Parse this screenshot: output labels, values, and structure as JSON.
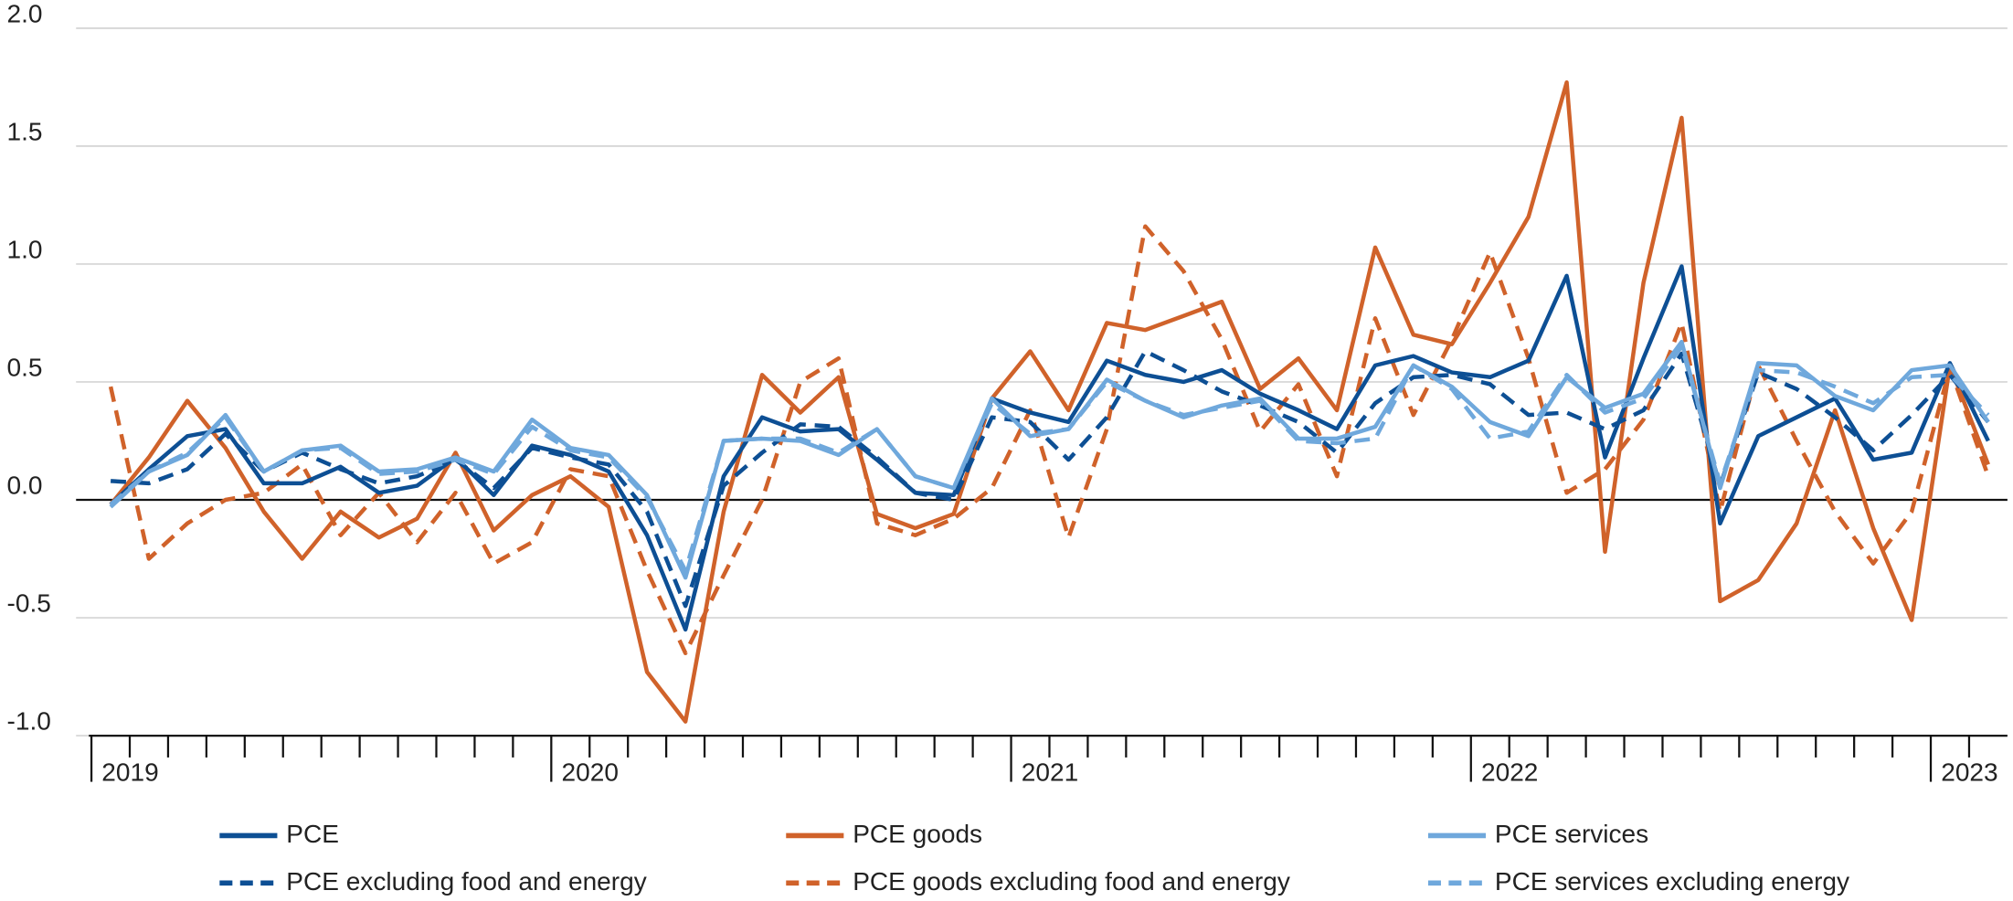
{
  "chart_data": {
    "type": "line",
    "categories": [
      "2019",
      null,
      null,
      null,
      null,
      null,
      null,
      null,
      null,
      null,
      null,
      null,
      "2020",
      null,
      null,
      null,
      null,
      null,
      null,
      null,
      null,
      null,
      null,
      null,
      "2021",
      null,
      null,
      null,
      null,
      null,
      null,
      null,
      null,
      null,
      null,
      null,
      "2022",
      null,
      null,
      null,
      null,
      null,
      null,
      null,
      null,
      null,
      null,
      null,
      "2023",
      null
    ],
    "ylim": [
      -1.0,
      2.0
    ],
    "yticks": [
      {
        "value": 2.0,
        "label": "2.0"
      },
      {
        "value": 1.5,
        "label": "1.5"
      },
      {
        "value": 1.0,
        "label": "1.0"
      },
      {
        "value": 0.5,
        "label": "0.5"
      },
      {
        "value": 0,
        "label": "0.0"
      },
      {
        "value": -0.5,
        "label": "-0.5"
      },
      {
        "value": -1.0,
        "label": "-1.0"
      }
    ],
    "grid": true,
    "legend": "bottom",
    "series": [
      {
        "name": "PCE",
        "color": "#0d4f94",
        "dashed": false,
        "values": [
          -0.02,
          0.13,
          0.27,
          0.3,
          0.07,
          0.07,
          0.14,
          0.03,
          0.06,
          0.18,
          0.02,
          0.23,
          0.19,
          0.12,
          -0.15,
          -0.55,
          0.1,
          0.35,
          0.29,
          0.3,
          0.17,
          0.03,
          0.02,
          0.43,
          0.37,
          0.33,
          0.59,
          0.53,
          0.5,
          0.55,
          0.45,
          0.38,
          0.3,
          0.57,
          0.61,
          0.54,
          0.52,
          0.59,
          0.95,
          0.18,
          0.6,
          0.99,
          -0.1,
          0.27,
          0.35,
          0.43,
          0.17,
          0.2,
          0.58,
          0.25
        ]
      },
      {
        "name": "PCE goods",
        "color": "#d0622a",
        "dashed": false,
        "values": [
          -0.02,
          0.18,
          0.42,
          0.22,
          -0.05,
          -0.25,
          -0.05,
          -0.16,
          -0.08,
          0.2,
          -0.13,
          0.02,
          0.1,
          -0.03,
          -0.73,
          -0.94,
          -0.05,
          0.53,
          0.37,
          0.52,
          -0.06,
          -0.12,
          -0.06,
          0.43,
          0.63,
          0.38,
          0.75,
          0.72,
          0.78,
          0.84,
          0.47,
          0.6,
          0.38,
          1.07,
          0.7,
          0.66,
          0.92,
          1.2,
          1.77,
          -0.22,
          0.92,
          1.62,
          -0.43,
          -0.34,
          -0.1,
          0.38,
          -0.12,
          -0.51,
          0.57,
          0.15
        ]
      },
      {
        "name": "PCE services",
        "color": "#6fa8dc",
        "dashed": false,
        "values": [
          -0.03,
          0.12,
          0.19,
          0.36,
          0.12,
          0.21,
          0.23,
          0.12,
          0.13,
          0.18,
          0.12,
          0.34,
          0.22,
          0.19,
          0.02,
          -0.33,
          0.25,
          0.26,
          0.25,
          0.19,
          0.3,
          0.1,
          0.05,
          0.43,
          0.27,
          0.3,
          0.51,
          0.42,
          0.35,
          0.4,
          0.43,
          0.26,
          0.26,
          0.31,
          0.57,
          0.48,
          0.33,
          0.27,
          0.52,
          0.39,
          0.45,
          0.67,
          0.05,
          0.58,
          0.57,
          0.44,
          0.38,
          0.55,
          0.57,
          0.33
        ]
      },
      {
        "name": "PCE excluding food and energy",
        "color": "#0d4f94",
        "dashed": true,
        "values": [
          0.08,
          0.07,
          0.13,
          0.28,
          0.12,
          0.2,
          0.13,
          0.07,
          0.1,
          0.17,
          0.05,
          0.22,
          0.18,
          0.15,
          -0.05,
          -0.45,
          0.06,
          0.2,
          0.32,
          0.31,
          0.18,
          0.03,
          0.0,
          0.35,
          0.33,
          0.17,
          0.35,
          0.63,
          0.55,
          0.46,
          0.4,
          0.33,
          0.2,
          0.41,
          0.52,
          0.53,
          0.49,
          0.36,
          0.37,
          0.3,
          0.38,
          0.62,
          0.06,
          0.54,
          0.47,
          0.35,
          0.21,
          0.36,
          0.53,
          0.33
        ]
      },
      {
        "name": "PCE goods excluding food and energy",
        "color": "#d0622a",
        "dashed": true,
        "values": [
          0.48,
          -0.25,
          -0.1,
          0.0,
          0.03,
          0.15,
          -0.15,
          0.03,
          -0.18,
          0.03,
          -0.27,
          -0.18,
          0.13,
          0.1,
          -0.3,
          -0.65,
          -0.32,
          0.0,
          0.5,
          0.6,
          -0.1,
          -0.15,
          -0.08,
          0.05,
          0.38,
          -0.16,
          0.3,
          1.16,
          0.97,
          0.68,
          0.29,
          0.49,
          0.1,
          0.77,
          0.36,
          0.68,
          1.05,
          0.6,
          0.03,
          0.13,
          0.34,
          0.75,
          -0.05,
          0.57,
          0.25,
          -0.05,
          -0.27,
          -0.05,
          0.56,
          0.1
        ]
      },
      {
        "name": "PCE services excluding energy",
        "color": "#6fa8dc",
        "dashed": true,
        "values": [
          -0.02,
          0.12,
          0.2,
          0.35,
          0.12,
          0.21,
          0.22,
          0.11,
          0.12,
          0.17,
          0.11,
          0.31,
          0.21,
          0.18,
          0.01,
          -0.3,
          0.25,
          0.26,
          0.26,
          0.2,
          0.3,
          0.1,
          0.05,
          0.41,
          0.28,
          0.3,
          0.5,
          0.42,
          0.36,
          0.39,
          0.42,
          0.25,
          0.24,
          0.26,
          0.57,
          0.47,
          0.26,
          0.29,
          0.53,
          0.37,
          0.43,
          0.65,
          0.07,
          0.55,
          0.54,
          0.48,
          0.41,
          0.52,
          0.53,
          0.36
        ]
      }
    ]
  }
}
